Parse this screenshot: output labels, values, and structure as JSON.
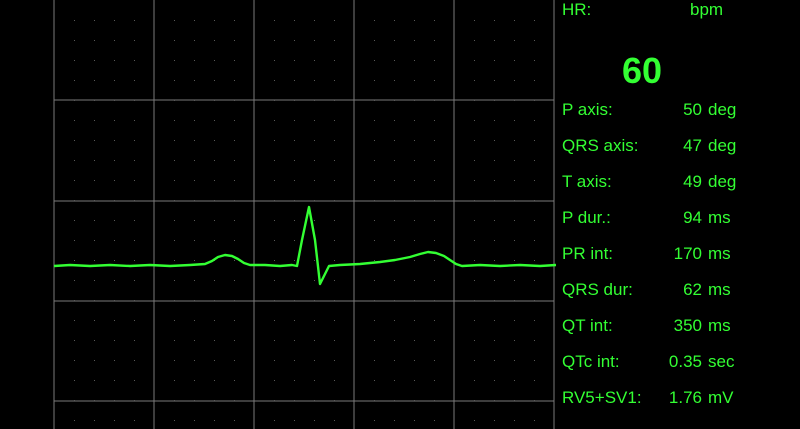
{
  "heart_rate": {
    "label": "HR:",
    "unit": "bpm",
    "value": "60"
  },
  "measurements": [
    {
      "label": "P axis:",
      "value": "50",
      "unit": "deg"
    },
    {
      "label": "QRS axis:",
      "value": "47",
      "unit": "deg"
    },
    {
      "label": "T axis:",
      "value": "49",
      "unit": "deg"
    },
    {
      "label": "P dur.:",
      "value": "94",
      "unit": "ms"
    },
    {
      "label": "PR int:",
      "value": "170",
      "unit": "ms"
    },
    {
      "label": "QRS dur:",
      "value": "62",
      "unit": "ms"
    },
    {
      "label": "QT int:",
      "value": "350",
      "unit": "ms"
    },
    {
      "label": "QTc int:",
      "value": "0.35",
      "unit": "sec"
    },
    {
      "label": "RV5+SV1:",
      "value": "1.76",
      "unit": "mV"
    }
  ],
  "colors": {
    "trace": "#33ff33",
    "grid": "#7a7a7a",
    "background": "#000000"
  }
}
